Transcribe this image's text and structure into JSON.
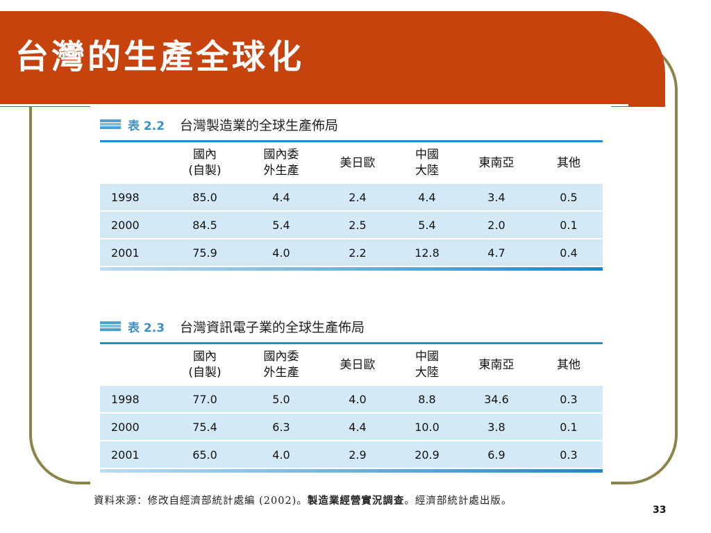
{
  "slide": {
    "title": "台灣的生產全球化",
    "page_number": "33",
    "colors": {
      "banner": "#c6430e",
      "frame": "#8b8448",
      "table_accent": "#2c8ac4",
      "row_fill": "#d4e9f6"
    }
  },
  "tables": [
    {
      "label": "表 2.2",
      "caption": "台灣製造業的全球生產佈局",
      "headers": [
        "",
        "國內\n(自製)",
        "國內委\n外生產",
        "美日歐",
        "中國\n大陸",
        "東南亞",
        "其他"
      ],
      "rows": [
        [
          "1998",
          "85.0",
          "4.4",
          "2.4",
          "4.4",
          "3.4",
          "0.5"
        ],
        [
          "2000",
          "84.5",
          "5.4",
          "2.5",
          "5.4",
          "2.0",
          "0.1"
        ],
        [
          "2001",
          "75.9",
          "4.0",
          "2.2",
          "12.8",
          "4.7",
          "0.4"
        ]
      ]
    },
    {
      "label": "表 2.3",
      "caption": "台灣資訊電子業的全球生產佈局",
      "headers": [
        "",
        "國內\n(自製)",
        "國內委\n外生產",
        "美日歐",
        "中國\n大陸",
        "東南亞",
        "其他"
      ],
      "rows": [
        [
          "1998",
          "77.0",
          "5.0",
          "4.0",
          "8.8",
          "34.6",
          "0.3"
        ],
        [
          "2000",
          "75.4",
          "6.3",
          "4.4",
          "10.0",
          "3.8",
          "0.1"
        ],
        [
          "2001",
          "65.0",
          "4.0",
          "2.9",
          "20.9",
          "6.9",
          "0.3"
        ]
      ]
    }
  ],
  "source_note": {
    "prefix": "資料來源：修改自經濟部統計處編 (2002)。",
    "bold": "製造業經營實況調查",
    "suffix": "。經濟部統計處出版。"
  }
}
